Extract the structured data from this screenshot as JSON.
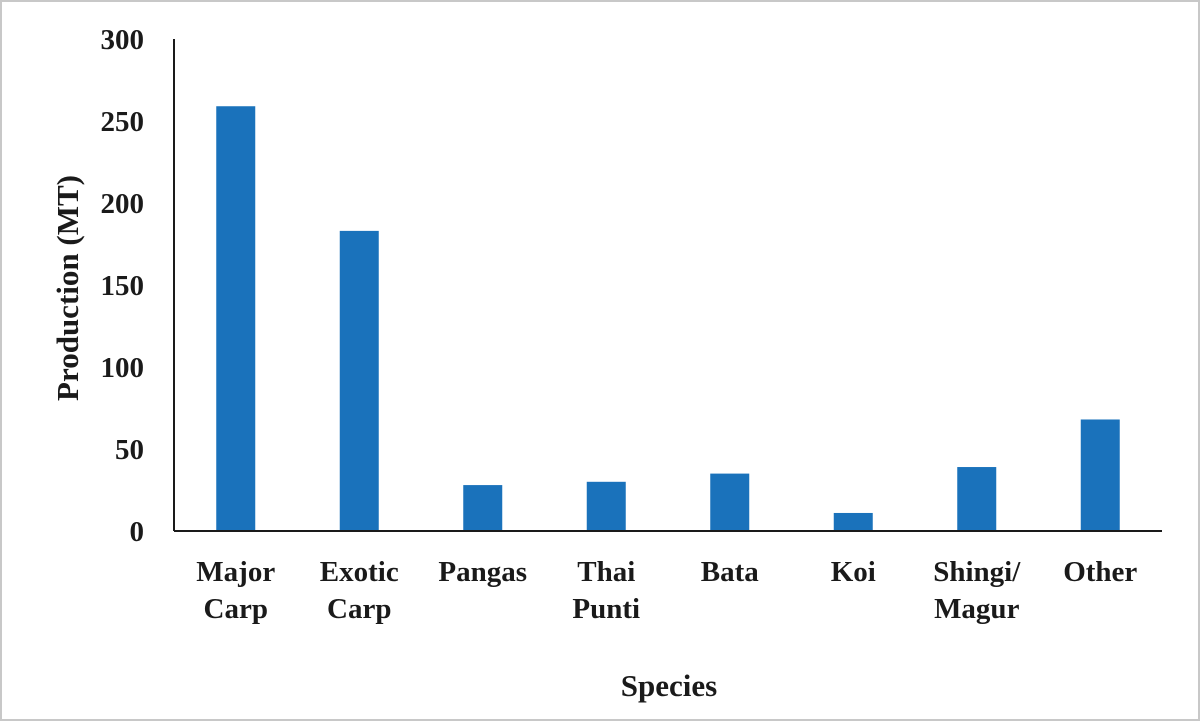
{
  "chart_data": {
    "type": "bar",
    "title": "",
    "xlabel": "Species",
    "ylabel": "Production (MT)",
    "ylim": [
      0,
      300
    ],
    "yticks": [
      0,
      50,
      100,
      150,
      200,
      250,
      300
    ],
    "grid": false,
    "legend": "none",
    "bar_color": "#1a72bb",
    "categories": [
      [
        "Major",
        "Carp"
      ],
      [
        "Exotic",
        "Carp"
      ],
      [
        "Pangas"
      ],
      [
        "Thai",
        "Punti"
      ],
      [
        "Bata"
      ],
      [
        "Koi"
      ],
      [
        "Shingi/",
        "Magur"
      ],
      [
        "Other"
      ]
    ],
    "values": [
      259,
      183,
      28,
      30,
      35,
      11,
      39,
      68
    ]
  }
}
